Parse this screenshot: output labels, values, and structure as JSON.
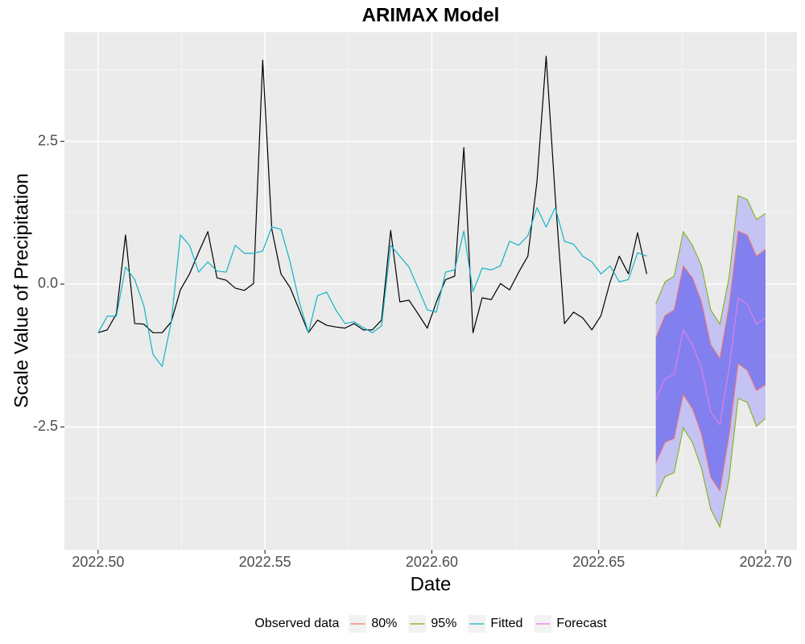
{
  "chart_data": {
    "type": "line",
    "title": "ARIMAX Model",
    "x_label": "Date",
    "y_label": "Scale Value of Precipitation",
    "legend_title": "Observed data",
    "legend_position": "bottom",
    "grid": true,
    "xlim": [
      2022.4899,
      2022.7094
    ],
    "ylim": [
      -4.65,
      4.41
    ],
    "xticks": [
      {
        "value": 2022.5,
        "label": "2022.50"
      },
      {
        "value": 2022.55,
        "label": "2022.55"
      },
      {
        "value": 2022.6,
        "label": "2022.60"
      },
      {
        "value": 2022.65,
        "label": "2022.65"
      },
      {
        "value": 2022.7,
        "label": "2022.70"
      }
    ],
    "yticks": [
      -2.5,
      {
        "value": 0,
        "label": "0.0"
      },
      2.5
    ],
    "series": [
      {
        "color": "#000000",
        "x": [
          2022.5,
          2022.50274,
          2022.50548,
          2022.50822,
          2022.51096,
          2022.5137,
          2022.51644,
          2022.51918,
          2022.52192,
          2022.52466,
          2022.5274,
          2022.53014,
          2022.53288,
          2022.53562,
          2022.53836,
          2022.5411,
          2022.54384,
          2022.54658,
          2022.54932,
          2022.55205,
          2022.55479,
          2022.55753,
          2022.56027,
          2022.56301,
          2022.56575,
          2022.56849,
          2022.57123,
          2022.57397,
          2022.57671,
          2022.57945,
          2022.58219,
          2022.58493,
          2022.58767,
          2022.59041,
          2022.59315,
          2022.59589,
          2022.59863,
          2022.60137,
          2022.60411,
          2022.60685,
          2022.60959,
          2022.61233,
          2022.61507,
          2022.61781,
          2022.62055,
          2022.62329,
          2022.62603,
          2022.62877,
          2022.63151,
          2022.63425,
          2022.63699,
          2022.63973,
          2022.64247,
          2022.64521,
          2022.64795,
          2022.65068,
          2022.65342,
          2022.65616,
          2022.6589,
          2022.66164,
          2022.66438
        ],
        "values": [
          -0.85,
          -0.8,
          -0.52,
          0.86,
          -0.69,
          -0.7,
          -0.85,
          -0.85,
          -0.66,
          -0.1,
          0.18,
          0.56,
          0.92,
          0.11,
          0.07,
          -0.07,
          -0.11,
          0.01,
          3.92,
          0.96,
          0.18,
          -0.06,
          -0.45,
          -0.85,
          -0.63,
          -0.72,
          -0.75,
          -0.77,
          -0.69,
          -0.8,
          -0.8,
          -0.63,
          0.94,
          -0.31,
          -0.28,
          -0.52,
          -0.77,
          -0.31,
          0.08,
          0.14,
          2.39,
          -0.85,
          -0.24,
          -0.27,
          0.01,
          -0.1,
          0.21,
          0.49,
          1.8,
          3.99,
          1.52,
          -0.69,
          -0.49,
          -0.59,
          -0.8,
          -0.55,
          0.04,
          0.49,
          0.18,
          0.9,
          0.18
        ]
      },
      {
        "name": "Fitted",
        "color": "#14b4c6",
        "x": [
          2022.5,
          2022.50274,
          2022.50548,
          2022.50822,
          2022.51096,
          2022.5137,
          2022.51644,
          2022.51918,
          2022.52192,
          2022.52466,
          2022.5274,
          2022.53014,
          2022.53288,
          2022.53562,
          2022.53836,
          2022.5411,
          2022.54384,
          2022.54658,
          2022.54932,
          2022.55205,
          2022.55479,
          2022.55753,
          2022.56027,
          2022.56301,
          2022.56575,
          2022.56849,
          2022.57123,
          2022.57397,
          2022.57671,
          2022.57945,
          2022.58219,
          2022.58493,
          2022.58767,
          2022.59041,
          2022.59315,
          2022.59589,
          2022.59863,
          2022.60137,
          2022.60411,
          2022.60685,
          2022.60959,
          2022.61233,
          2022.61507,
          2022.61781,
          2022.62055,
          2022.62329,
          2022.62603,
          2022.62877,
          2022.63151,
          2022.63425,
          2022.63699,
          2022.63973,
          2022.64247,
          2022.64521,
          2022.64795,
          2022.65068,
          2022.65342,
          2022.65616,
          2022.6589,
          2022.66164,
          2022.66438
        ],
        "values": [
          -0.85,
          -0.56,
          -0.56,
          0.3,
          0.08,
          -0.38,
          -1.23,
          -1.44,
          -0.66,
          0.86,
          0.68,
          0.21,
          0.39,
          0.23,
          0.21,
          0.68,
          0.54,
          0.54,
          0.58,
          1.0,
          0.96,
          0.39,
          -0.31,
          -0.85,
          -0.2,
          -0.14,
          -0.45,
          -0.69,
          -0.66,
          -0.76,
          -0.85,
          -0.73,
          0.68,
          0.49,
          0.3,
          -0.07,
          -0.45,
          -0.49,
          0.21,
          0.25,
          0.93,
          -0.13,
          0.28,
          0.25,
          0.32,
          0.75,
          0.68,
          0.85,
          1.34,
          1.0,
          1.34,
          0.75,
          0.7,
          0.49,
          0.39,
          0.18,
          0.32,
          0.04,
          0.08,
          0.55,
          0.49
        ]
      },
      {
        "name": "Forecast",
        "color": "#e27ee9",
        "x": [
          2022.66712,
          2022.66986,
          2022.6726,
          2022.67534,
          2022.67808,
          2022.68082,
          2022.68356,
          2022.6863,
          2022.68904,
          2022.69178,
          2022.69452,
          2022.69726,
          2022.7
        ],
        "values": [
          -2.03,
          -1.65,
          -1.58,
          -0.8,
          -1.06,
          -1.48,
          -2.24,
          -2.46,
          -1.48,
          -0.24,
          -0.35,
          -0.7,
          -0.59
        ]
      }
    ],
    "bands": [
      {
        "name": "95%",
        "color": "#7cae00",
        "fill": "#c4c3f3",
        "x": [
          2022.66712,
          2022.66986,
          2022.6726,
          2022.67534,
          2022.67808,
          2022.68082,
          2022.68356,
          2022.6863,
          2022.68904,
          2022.69178,
          2022.69452,
          2022.69726,
          2022.7
        ],
        "upper": [
          -0.34,
          0.04,
          0.14,
          0.92,
          0.68,
          0.32,
          -0.45,
          -0.7,
          0.11,
          1.55,
          1.48,
          1.13,
          1.24
        ],
        "lower": [
          -3.72,
          -3.37,
          -3.3,
          -2.52,
          -2.77,
          -3.23,
          -3.94,
          -4.25,
          -3.41,
          -2.0,
          -2.07,
          -2.49,
          -2.35
        ]
      },
      {
        "name": "80%",
        "color": "#f8766d",
        "fill": "#8180ee",
        "x": [
          2022.66712,
          2022.66986,
          2022.6726,
          2022.67534,
          2022.67808,
          2022.68082,
          2022.68356,
          2022.6863,
          2022.68904,
          2022.69178,
          2022.69452,
          2022.69726,
          2022.7
        ],
        "upper": [
          -0.94,
          -0.55,
          -0.45,
          0.32,
          0.11,
          -0.31,
          -1.06,
          -1.3,
          -0.38,
          0.93,
          0.86,
          0.49,
          0.61
        ],
        "lower": [
          -3.13,
          -2.77,
          -2.7,
          -1.93,
          -2.18,
          -2.63,
          -3.38,
          -3.62,
          -2.66,
          -1.39,
          -1.51,
          -1.86,
          -1.76
        ]
      }
    ]
  }
}
